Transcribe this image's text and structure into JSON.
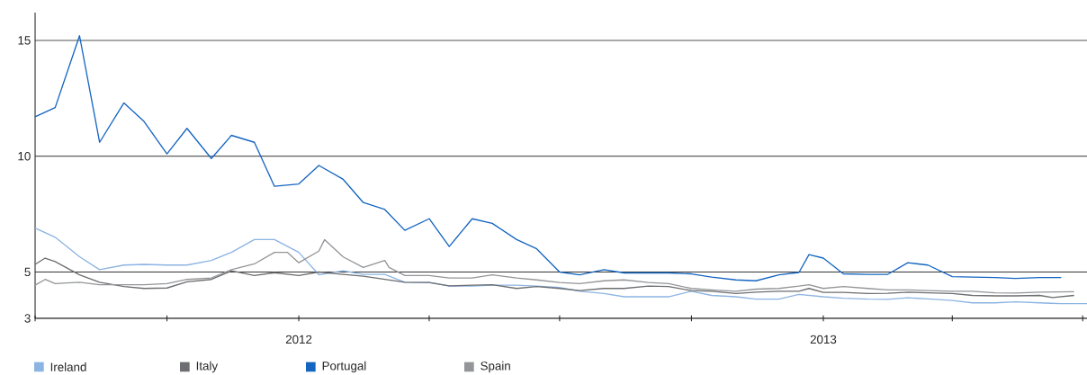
{
  "chart_data": {
    "type": "line",
    "xlim": [
      "2011-07-01",
      "2013-07-04"
    ],
    "ylim": [
      3,
      16.2
    ],
    "xticks": [
      {
        "value": "2011-07-01",
        "label": null
      },
      {
        "value": "2011-10-01",
        "label": null
      },
      {
        "value": "2012-01-01",
        "label": "2012"
      },
      {
        "value": "2012-04-01",
        "label": null
      },
      {
        "value": "2012-07-01",
        "label": null
      },
      {
        "value": "2012-10-01",
        "label": null
      },
      {
        "value": "2013-01-01",
        "label": "2013"
      },
      {
        "value": "2013-04-01",
        "label": null
      },
      {
        "value": "2013-07-01",
        "label": null
      }
    ],
    "yticks": [
      3,
      5,
      10,
      15
    ],
    "grid": "y",
    "legend": "bottom",
    "line_style": "solid",
    "marker": "none",
    "series": [
      {
        "name": "Ireland",
        "color": "#8cb4e2",
        "x": [
          "2011-07-01",
          "2011-07-15",
          "2011-08-01",
          "2011-08-15",
          "2011-09-01",
          "2011-09-15",
          "2011-10-01",
          "2011-10-15",
          "2011-11-01",
          "2011-11-15",
          "2011-12-01",
          "2011-12-15",
          "2012-01-01",
          "2012-01-15",
          "2012-02-01",
          "2012-02-15",
          "2012-03-01",
          "2012-03-15",
          "2012-04-01",
          "2012-04-15",
          "2012-05-01",
          "2012-05-15",
          "2012-06-01",
          "2012-06-15",
          "2012-07-01",
          "2012-07-15",
          "2012-08-01",
          "2012-08-15",
          "2012-09-01",
          "2012-09-15",
          "2012-10-01",
          "2012-10-15",
          "2012-11-01",
          "2012-11-15",
          "2012-12-01",
          "2012-12-15",
          "2013-01-01",
          "2013-01-15",
          "2013-02-01",
          "2013-02-15",
          "2013-03-01",
          "2013-03-15",
          "2013-04-01",
          "2013-04-15",
          "2013-05-01",
          "2013-05-15",
          "2013-06-01",
          "2013-06-16",
          "2013-07-04"
        ],
        "values": [
          6.9,
          6.5,
          5.66,
          5.1,
          5.3,
          5.33,
          5.3,
          5.3,
          5.5,
          5.85,
          6.4,
          6.4,
          5.85,
          4.88,
          5.05,
          4.9,
          4.9,
          4.56,
          4.55,
          4.39,
          4.39,
          4.43,
          4.43,
          4.39,
          4.33,
          4.17,
          4.07,
          3.93,
          3.93,
          3.93,
          4.17,
          3.99,
          3.93,
          3.83,
          3.83,
          4.03,
          3.93,
          3.87,
          3.83,
          3.82,
          3.89,
          3.84,
          3.77,
          3.67,
          3.67,
          3.71,
          3.67,
          3.63,
          3.63
        ]
      },
      {
        "name": "Italy",
        "color": "#6d6e71",
        "x": [
          "2011-07-01",
          "2011-07-08",
          "2011-07-15",
          "2011-08-01",
          "2011-08-15",
          "2011-09-01",
          "2011-09-15",
          "2011-10-01",
          "2011-10-15",
          "2011-11-01",
          "2011-11-15",
          "2011-12-01",
          "2011-12-15",
          "2012-01-01",
          "2012-01-15",
          "2012-02-01",
          "2012-02-15",
          "2012-03-01",
          "2012-03-15",
          "2012-04-01",
          "2012-04-15",
          "2012-05-01",
          "2012-05-15",
          "2012-06-01",
          "2012-06-15",
          "2012-07-01",
          "2012-07-15",
          "2012-08-01",
          "2012-08-15",
          "2012-09-01",
          "2012-09-15",
          "2012-10-01",
          "2012-10-15",
          "2012-11-01",
          "2012-11-15",
          "2012-12-01",
          "2012-12-15",
          "2012-12-22",
          "2013-01-01",
          "2013-01-15",
          "2013-02-01",
          "2013-02-15",
          "2013-03-01",
          "2013-03-15",
          "2013-04-01",
          "2013-04-15",
          "2013-05-01",
          "2013-05-15",
          "2013-06-01",
          "2013-06-10",
          "2013-06-25"
        ],
        "values": [
          5.33,
          5.6,
          5.45,
          4.88,
          4.56,
          4.37,
          4.29,
          4.31,
          4.58,
          4.68,
          5.05,
          4.85,
          4.97,
          4.85,
          5.0,
          4.9,
          4.82,
          4.68,
          4.56,
          4.55,
          4.4,
          4.43,
          4.45,
          4.29,
          4.37,
          4.29,
          4.2,
          4.29,
          4.29,
          4.39,
          4.37,
          4.2,
          4.17,
          4.07,
          4.13,
          4.17,
          4.17,
          4.29,
          4.12,
          4.12,
          4.07,
          4.08,
          4.13,
          4.1,
          4.07,
          3.99,
          3.97,
          3.97,
          3.99,
          3.9,
          3.99
        ]
      },
      {
        "name": "Portugal",
        "color": "#1565c0",
        "x": [
          "2011-07-01",
          "2011-07-15",
          "2011-08-01",
          "2011-08-15",
          "2011-09-01",
          "2011-09-15",
          "2011-10-01",
          "2011-10-15",
          "2011-11-01",
          "2011-11-15",
          "2011-12-01",
          "2011-12-15",
          "2012-01-01",
          "2012-01-15",
          "2012-02-01",
          "2012-02-15",
          "2012-03-01",
          "2012-03-15",
          "2012-04-01",
          "2012-04-15",
          "2012-05-01",
          "2012-05-15",
          "2012-06-01",
          "2012-06-15",
          "2012-07-01",
          "2012-07-15",
          "2012-08-01",
          "2012-08-15",
          "2012-09-01",
          "2012-09-15",
          "2012-10-01",
          "2012-10-15",
          "2012-11-01",
          "2012-11-15",
          "2012-12-01",
          "2012-12-15",
          "2012-12-22",
          "2013-01-01",
          "2013-01-15",
          "2013-02-01",
          "2013-02-15",
          "2013-03-01",
          "2013-03-15",
          "2013-04-01",
          "2013-04-15",
          "2013-05-01",
          "2013-05-15",
          "2013-06-01",
          "2013-06-16"
        ],
        "values": [
          11.7,
          12.1,
          15.2,
          10.6,
          12.3,
          11.5,
          10.1,
          11.2,
          9.9,
          10.9,
          10.6,
          8.7,
          8.8,
          9.6,
          9.0,
          8.0,
          7.7,
          6.8,
          7.3,
          6.1,
          7.3,
          7.1,
          6.4,
          6.0,
          5.0,
          4.88,
          5.1,
          4.96,
          4.96,
          4.96,
          4.92,
          4.78,
          4.66,
          4.62,
          4.88,
          4.98,
          5.75,
          5.6,
          4.92,
          4.9,
          4.9,
          5.4,
          5.3,
          4.8,
          4.78,
          4.76,
          4.72,
          4.76,
          4.76
        ]
      },
      {
        "name": "Spain",
        "color": "#939598",
        "x": [
          "2011-07-01",
          "2011-07-08",
          "2011-07-15",
          "2011-08-01",
          "2011-08-15",
          "2011-09-01",
          "2011-09-15",
          "2011-10-01",
          "2011-10-15",
          "2011-11-01",
          "2011-11-15",
          "2011-12-01",
          "2011-12-15",
          "2011-12-24",
          "2012-01-01",
          "2012-01-15",
          "2012-01-19",
          "2012-02-01",
          "2012-02-15",
          "2012-03-01",
          "2012-03-04",
          "2012-03-15",
          "2012-04-01",
          "2012-04-15",
          "2012-05-01",
          "2012-05-15",
          "2012-06-01",
          "2012-06-15",
          "2012-07-01",
          "2012-07-15",
          "2012-08-01",
          "2012-08-15",
          "2012-09-01",
          "2012-09-15",
          "2012-10-01",
          "2012-10-15",
          "2012-11-01",
          "2012-11-15",
          "2012-12-01",
          "2012-12-15",
          "2012-12-22",
          "2013-01-01",
          "2013-01-15",
          "2013-02-01",
          "2013-02-15",
          "2013-03-01",
          "2013-03-15",
          "2013-04-01",
          "2013-04-15",
          "2013-05-01",
          "2013-05-15",
          "2013-06-01",
          "2013-06-25"
        ],
        "values": [
          4.43,
          4.68,
          4.5,
          4.56,
          4.45,
          4.45,
          4.45,
          4.5,
          4.68,
          4.74,
          5.1,
          5.35,
          5.85,
          5.85,
          5.4,
          5.9,
          6.4,
          5.65,
          5.2,
          5.5,
          5.2,
          4.85,
          4.85,
          4.74,
          4.74,
          4.88,
          4.74,
          4.66,
          4.55,
          4.5,
          4.62,
          4.66,
          4.55,
          4.5,
          4.29,
          4.23,
          4.17,
          4.26,
          4.29,
          4.39,
          4.45,
          4.29,
          4.37,
          4.29,
          4.23,
          4.23,
          4.2,
          4.17,
          4.17,
          4.1,
          4.09,
          4.13,
          4.15
        ]
      }
    ]
  }
}
